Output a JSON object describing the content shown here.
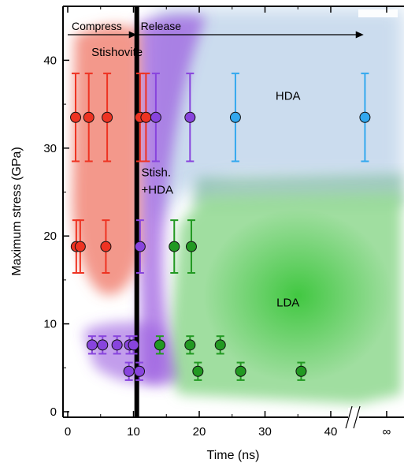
{
  "chart_data": {
    "type": "scatter",
    "xlabel": "Time (ns)",
    "ylabel": "Maximum stress (GPa)",
    "xlim": [
      0,
      50
    ],
    "ylim": [
      0,
      45
    ],
    "x_ticks": [
      {
        "value": 0,
        "label": "0"
      },
      {
        "value": 10,
        "label": "10"
      },
      {
        "value": 20,
        "label": "20"
      },
      {
        "value": 30,
        "label": "30"
      },
      {
        "value": 40,
        "label": "40"
      },
      {
        "value": 48.5,
        "label": "∞"
      }
    ],
    "y_ticks": [
      {
        "value": 0,
        "label": "0"
      },
      {
        "value": 10,
        "label": "10"
      },
      {
        "value": 20,
        "label": "20"
      },
      {
        "value": 30,
        "label": "30"
      },
      {
        "value": 40,
        "label": "40"
      }
    ],
    "axis_break_x": 43,
    "divider_x": 10.5,
    "phases": [
      {
        "label": "Compress",
        "x_start": 0,
        "x_end": 10.5
      },
      {
        "label": "Release",
        "x_start": 10.5,
        "x_end": 45
      }
    ],
    "region_labels": [
      {
        "text": "Stishovite",
        "x": 7.5,
        "y": 40.5
      },
      {
        "text": "Stish.",
        "x": 11.2,
        "y": 26.8
      },
      {
        "text": "+HDA",
        "x": 11.2,
        "y": 24.8
      },
      {
        "text": "HDA",
        "x": 33.5,
        "y": 35.5
      },
      {
        "text": "LDA",
        "x": 33.5,
        "y": 12.0
      }
    ],
    "series": [
      {
        "color": "#ee3322",
        "error": 5.0,
        "points": [
          [
            1.2,
            33.5
          ],
          [
            3.2,
            33.5
          ],
          [
            6.0,
            33.5
          ],
          [
            11.0,
            33.5
          ],
          [
            11.9,
            33.5
          ]
        ]
      },
      {
        "color": "#ee3322",
        "error": 3.0,
        "points": [
          [
            1.3,
            18.8
          ],
          [
            1.9,
            18.8
          ],
          [
            5.8,
            18.8
          ]
        ]
      },
      {
        "color": "#8844dd",
        "error": 5.0,
        "points": [
          [
            13.4,
            33.5
          ],
          [
            18.6,
            33.5
          ]
        ]
      },
      {
        "color": "#8844dd",
        "error": 3.0,
        "points": [
          [
            11.0,
            18.8
          ]
        ]
      },
      {
        "color": "#8844dd",
        "error": 1.0,
        "points": [
          [
            3.7,
            7.6
          ],
          [
            5.3,
            7.6
          ],
          [
            7.5,
            7.6
          ],
          [
            9.4,
            7.6
          ],
          [
            10.0,
            7.6
          ],
          [
            9.3,
            4.6
          ],
          [
            10.9,
            4.6
          ]
        ]
      },
      {
        "color": "#33a8ee",
        "error": 5.0,
        "points": [
          [
            25.5,
            33.5
          ],
          [
            45.2,
            33.5
          ]
        ]
      },
      {
        "color": "#229922",
        "error": 3.0,
        "points": [
          [
            16.2,
            18.8
          ],
          [
            18.8,
            18.8
          ]
        ]
      },
      {
        "color": "#229922",
        "error": 1.0,
        "points": [
          [
            14.0,
            7.6
          ],
          [
            18.6,
            7.6
          ],
          [
            23.2,
            7.6
          ],
          [
            19.8,
            4.6
          ],
          [
            26.3,
            4.6
          ],
          [
            35.5,
            4.6
          ]
        ]
      }
    ]
  }
}
